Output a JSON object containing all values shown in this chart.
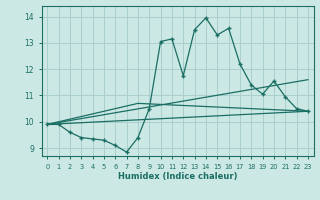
{
  "xlabel": "Humidex (Indice chaleur)",
  "bg_color": "#cce8e4",
  "line_color": "#1a6e64",
  "grid_color": "#aacfcc",
  "xlim": [
    -0.5,
    23.5
  ],
  "ylim": [
    8.7,
    14.4
  ],
  "xticks": [
    0,
    1,
    2,
    3,
    4,
    5,
    6,
    7,
    8,
    9,
    10,
    11,
    12,
    13,
    14,
    15,
    16,
    17,
    18,
    19,
    20,
    21,
    22,
    23
  ],
  "yticks": [
    9,
    10,
    11,
    12,
    13,
    14
  ],
  "series1_x": [
    0,
    1,
    2,
    3,
    4,
    5,
    6,
    7,
    8,
    9,
    10,
    11,
    12,
    13,
    14,
    15,
    16,
    17,
    18,
    19,
    20,
    21,
    22,
    23
  ],
  "series1_y": [
    9.9,
    9.9,
    9.6,
    9.4,
    9.35,
    9.3,
    9.1,
    8.85,
    9.4,
    10.5,
    13.05,
    13.15,
    11.75,
    13.5,
    13.95,
    13.3,
    13.55,
    12.2,
    11.4,
    11.05,
    11.55,
    10.95,
    10.5,
    10.4
  ],
  "series2_x": [
    0,
    23
  ],
  "series2_y": [
    9.9,
    10.4
  ],
  "series3_x": [
    0,
    8,
    23
  ],
  "series3_y": [
    9.9,
    10.7,
    10.4
  ],
  "series4_x": [
    0,
    23
  ],
  "series4_y": [
    9.9,
    11.6
  ]
}
